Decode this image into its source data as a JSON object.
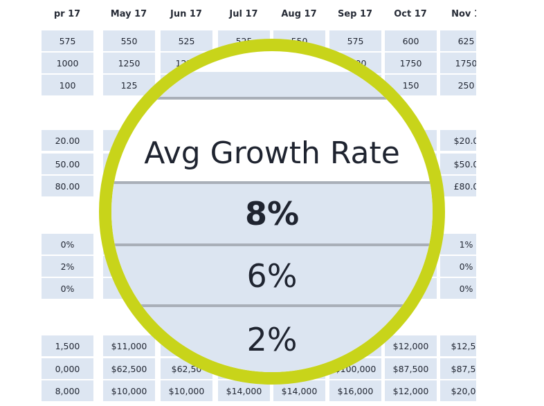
{
  "table": {
    "headers": [
      "pr 17",
      "May 17",
      "Jun 17",
      "Jul 17",
      "Aug 17",
      "Sep 17",
      "Oct 17",
      "Nov 1"
    ],
    "rows": [
      [
        "575",
        "550",
        "525",
        "525",
        "550",
        "575",
        "600",
        "625"
      ],
      [
        "1000",
        "1250",
        "1250",
        "",
        "",
        "2000",
        "1750",
        "1750"
      ],
      [
        "100",
        "125",
        "",
        "",
        "",
        "",
        "150",
        "250"
      ],
      [
        "20.00",
        "",
        "",
        "",
        "",
        "",
        "0",
        "$20.0"
      ],
      [
        "50.00",
        "",
        "",
        "",
        "",
        "",
        "",
        "$50.0"
      ],
      [
        "80.00",
        "",
        "",
        "",
        "",
        "",
        "",
        "£80.0"
      ],
      [
        "0%",
        "",
        "",
        "",
        "",
        "",
        "",
        "1%"
      ],
      [
        "2%",
        "",
        "",
        "",
        "",
        "",
        "",
        "0%"
      ],
      [
        "0%",
        "",
        "",
        "",
        "",
        "",
        "",
        "0%"
      ],
      [
        "1,500",
        "$11,000",
        "",
        "",
        "",
        "",
        "$12,000",
        "$12,50"
      ],
      [
        "0,000",
        "$62,500",
        "$62,50",
        "",
        "",
        "$100,000",
        "$87,500",
        "$87,50"
      ],
      [
        "8,000",
        "$10,000",
        "$10,000",
        "$14,000",
        "$14,000",
        "$16,000",
        "$12,000",
        "$20,00"
      ]
    ]
  },
  "magnifier": {
    "title": "Avg Growth Rate",
    "values": [
      "8%",
      "6%",
      "2%"
    ],
    "ring_color": "#c8d41a",
    "band_color": "#dce5f1"
  }
}
